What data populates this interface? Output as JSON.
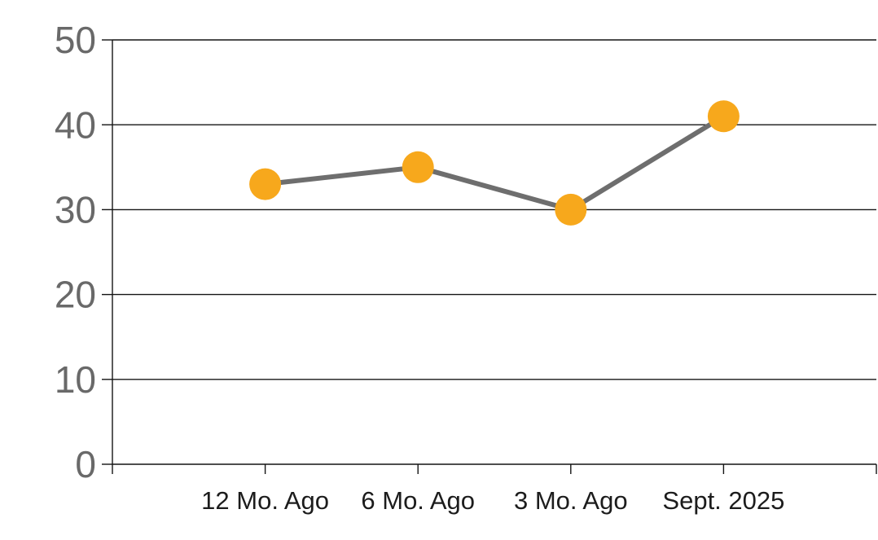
{
  "chart_data": {
    "type": "line",
    "title": "",
    "categories": [
      "12 Mo. Ago",
      "6 Mo. Ago",
      "3 Mo. Ago",
      "Sept. 2025"
    ],
    "values": [
      33,
      35,
      30,
      41
    ],
    "series": [
      {
        "name": "unlabeled-series",
        "values": [
          33,
          35,
          30,
          41
        ]
      }
    ],
    "xlabel": "",
    "ylabel": "",
    "ylim": [
      0,
      50
    ],
    "ytick_interval": 10,
    "ytick_labels": [
      "0",
      "10",
      "20",
      "30",
      "40",
      "50"
    ],
    "grid": "horizontal",
    "legend": "none",
    "axis_layout": "categories-on-tick-marks",
    "marker_style": "filled-circle",
    "colors": {
      "marker": "#F7A81C",
      "line": "#6E6E6E",
      "gridline": "#141414",
      "axis": "#141414",
      "y_tick_label": "#696969",
      "x_tick_label": "#1C1C1C",
      "background": "#FFFFFF"
    }
  }
}
